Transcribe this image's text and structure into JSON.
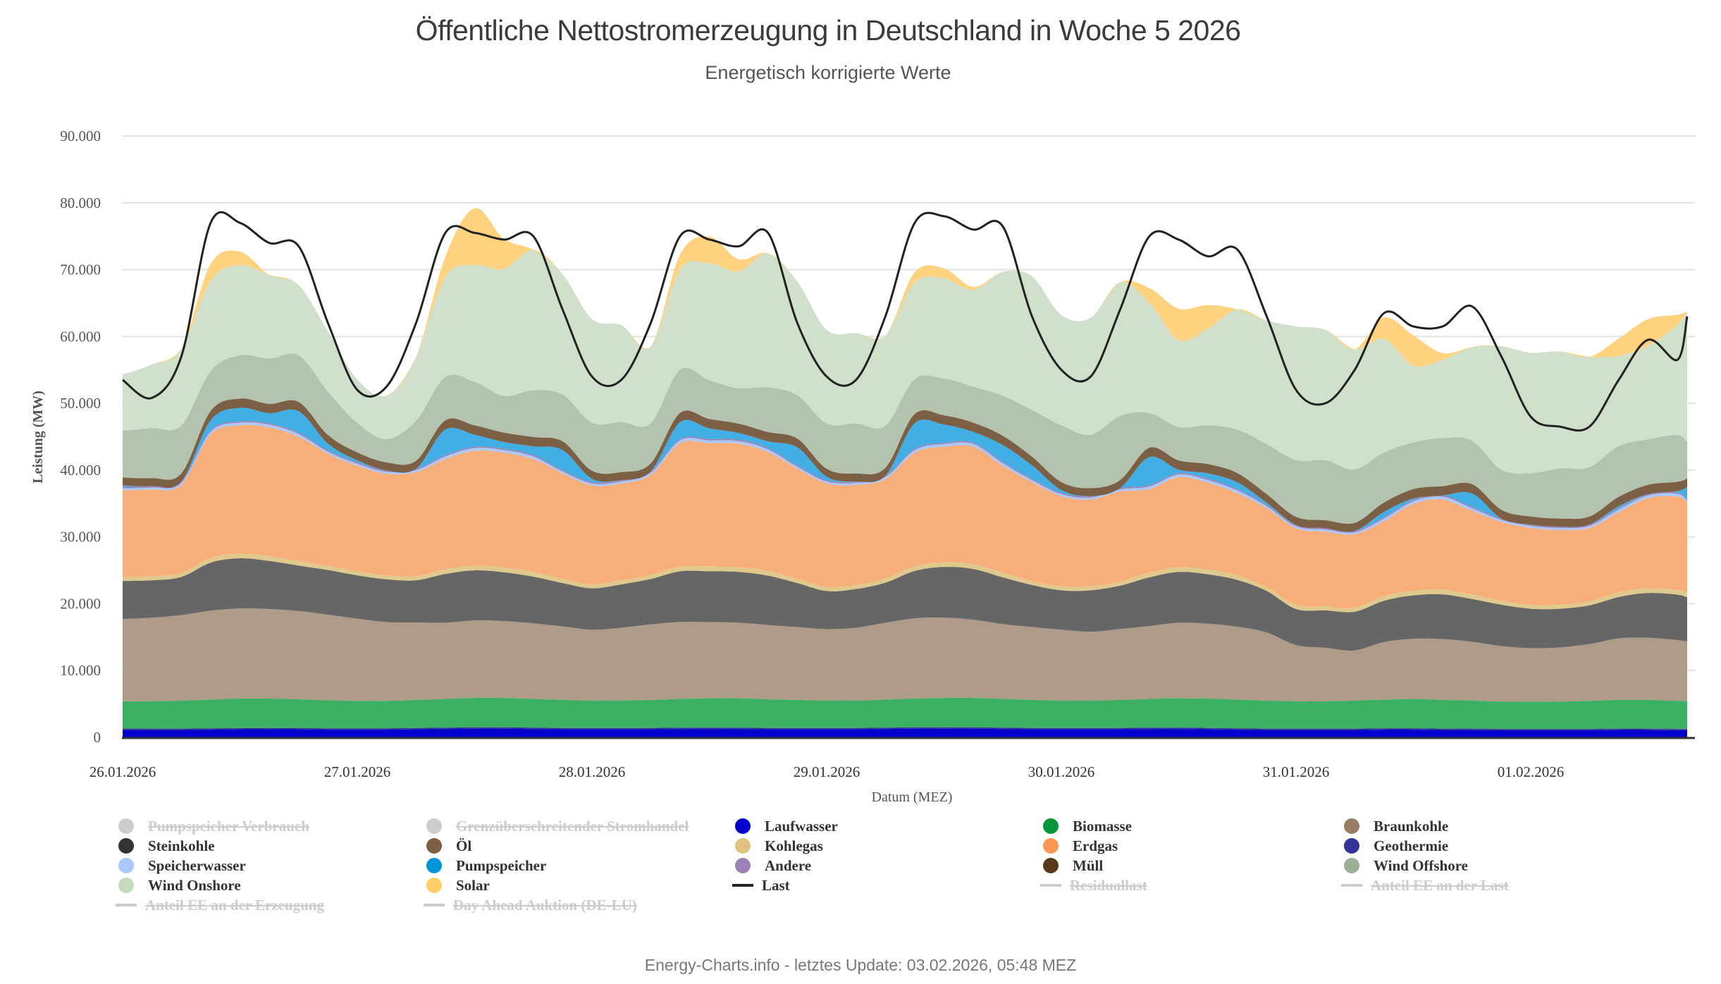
{
  "header": {
    "title": "Öffentliche Nettostromerzeugung in Deutschland in Woche 5 2026",
    "subtitle": "Energetisch korrigierte Werte"
  },
  "footer": {
    "text": "Energy-Charts.info - letztes Update: 03.02.2026, 05:48 MEZ"
  },
  "chart_data": {
    "type": "area",
    "stacked": true,
    "title": "Öffentliche Nettostromerzeugung in Deutschland in Woche 5 2026",
    "subtitle": "Energetisch korrigierte Werte",
    "xlabel": "Datum (MEZ)",
    "ylabel": "Leistung (MW)",
    "ylim": [
      0,
      90000
    ],
    "yticks": [
      0,
      10000,
      20000,
      30000,
      40000,
      50000,
      60000,
      70000,
      80000,
      90000
    ],
    "ytick_labels": [
      "0",
      "10.000",
      "20.000",
      "30.000",
      "40.000",
      "50.000",
      "60.000",
      "70.000",
      "80.000",
      "90.000"
    ],
    "xtick_labels": [
      "26.01.2026",
      "27.01.2026",
      "28.01.2026",
      "29.01.2026",
      "30.01.2026",
      "31.01.2026",
      "01.02.2026"
    ],
    "x_step_hours": 3,
    "x_start": "26.01.2026 00:00",
    "grid": true,
    "legend_position": "bottom",
    "x_hours": [
      0,
      3,
      6,
      9,
      12,
      15,
      18,
      21,
      24,
      27,
      30,
      33,
      36,
      39,
      42,
      45,
      48,
      51,
      54,
      57,
      60,
      63,
      66,
      69,
      72,
      75,
      78,
      81,
      84,
      87,
      90,
      93,
      96,
      99,
      102,
      105,
      108,
      111,
      114,
      117,
      120,
      123,
      126,
      129,
      132,
      135,
      138,
      141,
      144,
      147,
      150,
      153,
      156,
      159,
      160
    ],
    "series": [
      {
        "name": "Laufwasser",
        "color": "#0000cc",
        "values": [
          1100,
          1100,
          1100,
          1150,
          1200,
          1200,
          1200,
          1150,
          1150,
          1150,
          1200,
          1250,
          1300,
          1300,
          1250,
          1200,
          1200,
          1200,
          1200,
          1250,
          1250,
          1250,
          1200,
          1200,
          1200,
          1200,
          1250,
          1300,
          1300,
          1300,
          1250,
          1200,
          1200,
          1200,
          1200,
          1250,
          1250,
          1200,
          1150,
          1100,
          1100,
          1100,
          1100,
          1150,
          1150,
          1100,
          1100,
          1050,
          1050,
          1050,
          1050,
          1100,
          1100,
          1050,
          1050
        ]
      },
      {
        "name": "Geothermie",
        "color": "#333399",
        "values": [
          200,
          200,
          200,
          200,
          200,
          200,
          200,
          200,
          200,
          200,
          200,
          200,
          200,
          200,
          200,
          200,
          200,
          200,
          200,
          200,
          200,
          200,
          200,
          200,
          200,
          200,
          200,
          200,
          200,
          200,
          200,
          200,
          200,
          200,
          200,
          200,
          200,
          200,
          200,
          200,
          200,
          200,
          200,
          200,
          200,
          200,
          200,
          200,
          200,
          200,
          200,
          200,
          200,
          200,
          200
        ]
      },
      {
        "name": "Biomasse",
        "color": "#3cb062",
        "values": [
          4100,
          4100,
          4200,
          4300,
          4400,
          4400,
          4300,
          4200,
          4100,
          4100,
          4200,
          4300,
          4400,
          4400,
          4300,
          4200,
          4100,
          4100,
          4200,
          4300,
          4400,
          4400,
          4300,
          4200,
          4100,
          4100,
          4200,
          4300,
          4400,
          4400,
          4300,
          4200,
          4100,
          4100,
          4200,
          4300,
          4400,
          4400,
          4300,
          4200,
          4100,
          4100,
          4200,
          4300,
          4400,
          4300,
          4200,
          4100,
          4100,
          4100,
          4200,
          4300,
          4300,
          4200,
          4200
        ]
      },
      {
        "name": "Braunkohle",
        "color": "#ae9b88",
        "values": [
          12300,
          12500,
          12800,
          13300,
          13500,
          13400,
          13200,
          12800,
          12300,
          11800,
          11600,
          11400,
          11600,
          11500,
          11300,
          11000,
          10600,
          10900,
          11300,
          11500,
          11400,
          11300,
          11100,
          10900,
          10700,
          10900,
          11500,
          12000,
          12000,
          11700,
          11200,
          10900,
          10600,
          10300,
          10600,
          10900,
          11300,
          11200,
          10900,
          10200,
          8400,
          8000,
          7500,
          8600,
          9000,
          9100,
          8800,
          8300,
          8000,
          8100,
          8500,
          9200,
          9300,
          9100,
          8900
        ]
      },
      {
        "name": "Steinkohle",
        "color": "#666666",
        "values": [
          5700,
          5600,
          5700,
          7200,
          7500,
          7200,
          6800,
          6700,
          6500,
          6400,
          6300,
          7300,
          7500,
          7300,
          7000,
          6500,
          6200,
          6500,
          6800,
          7600,
          7600,
          7600,
          7400,
          6600,
          5700,
          5800,
          6000,
          7100,
          7600,
          7600,
          7000,
          6300,
          5900,
          6200,
          6500,
          7300,
          7600,
          7400,
          7000,
          6200,
          5400,
          5600,
          5800,
          6200,
          6500,
          6700,
          6400,
          6200,
          5900,
          5800,
          5800,
          6200,
          6700,
          6800,
          6600
        ]
      },
      {
        "name": "Kohlegas",
        "color": "#e0c98d",
        "values": [
          600,
          600,
          600,
          700,
          700,
          700,
          700,
          600,
          600,
          600,
          600,
          700,
          700,
          700,
          700,
          600,
          600,
          600,
          600,
          700,
          700,
          700,
          700,
          600,
          600,
          600,
          600,
          700,
          700,
          700,
          700,
          600,
          600,
          600,
          600,
          700,
          700,
          700,
          700,
          600,
          600,
          600,
          600,
          700,
          700,
          700,
          700,
          600,
          600,
          600,
          600,
          700,
          700,
          700,
          700
        ]
      },
      {
        "name": "Erdgas",
        "color": "#f8ae78",
        "values": [
          13000,
          13000,
          13200,
          18500,
          19200,
          19300,
          18600,
          16800,
          15800,
          15200,
          15600,
          16500,
          17200,
          17200,
          16900,
          15800,
          14800,
          14500,
          15000,
          18500,
          18500,
          18500,
          17800,
          16500,
          15500,
          15000,
          14900,
          17000,
          17300,
          17600,
          16000,
          14800,
          13500,
          13000,
          13500,
          12500,
          13500,
          13000,
          12300,
          11800,
          11500,
          11200,
          11000,
          11200,
          13000,
          13500,
          12500,
          11800,
          11500,
          11200,
          11000,
          12000,
          13500,
          14000,
          13500
        ]
      },
      {
        "name": "Speicherwasser",
        "color": "#a9c8ff",
        "values": [
          300,
          300,
          300,
          400,
          400,
          400,
          400,
          300,
          300,
          300,
          300,
          400,
          400,
          400,
          400,
          300,
          300,
          300,
          300,
          400,
          400,
          400,
          400,
          300,
          300,
          300,
          300,
          400,
          400,
          400,
          400,
          300,
          300,
          300,
          300,
          400,
          400,
          400,
          400,
          300,
          300,
          300,
          300,
          400,
          400,
          400,
          400,
          300,
          300,
          300,
          300,
          400,
          400,
          400,
          300
        ]
      },
      {
        "name": "Andere",
        "color": "#9b82b4",
        "values": [
          200,
          200,
          200,
          200,
          200,
          200,
          200,
          200,
          200,
          200,
          200,
          200,
          200,
          200,
          200,
          200,
          200,
          200,
          200,
          200,
          200,
          200,
          200,
          200,
          200,
          200,
          200,
          200,
          200,
          200,
          200,
          200,
          200,
          200,
          200,
          200,
          200,
          200,
          200,
          200,
          200,
          200,
          200,
          200,
          200,
          200,
          200,
          200,
          200,
          200,
          200,
          200,
          200,
          200,
          200
        ]
      },
      {
        "name": "Pumpspeicher",
        "color": "#41aee6",
        "values": [
          200,
          0,
          0,
          1500,
          2000,
          1500,
          3200,
          1000,
          300,
          0,
          0,
          3800,
          1800,
          1000,
          1300,
          3000,
          500,
          0,
          0,
          2500,
          1600,
          1000,
          1000,
          2700,
          500,
          0,
          0,
          3800,
          2700,
          1600,
          2500,
          2000,
          400,
          0,
          0,
          4200,
          500,
          800,
          1000,
          300,
          0,
          0,
          0,
          800,
          200,
          0,
          2000,
          0,
          0,
          0,
          0,
          300,
          0,
          200,
          1800
        ]
      },
      {
        "name": "Öl",
        "color": "#7b6045",
        "values": [
          1200,
          1200,
          1200,
          1400,
          1400,
          1400,
          1400,
          1300,
          1200,
          1200,
          1200,
          1400,
          1400,
          1400,
          1400,
          1300,
          1200,
          1200,
          1200,
          1400,
          1400,
          1400,
          1400,
          1300,
          1200,
          1200,
          1200,
          1400,
          1400,
          1400,
          1400,
          1300,
          1200,
          1200,
          1200,
          1400,
          1400,
          1400,
          1400,
          1300,
          1200,
          1200,
          1200,
          1400,
          1400,
          1400,
          1400,
          1300,
          1200,
          1200,
          1200,
          1400,
          1400,
          1400,
          1300
        ]
      },
      {
        "name": "Müll",
        "color": "#583a18",
        "values": [
          0,
          0,
          0,
          0,
          0,
          0,
          0,
          0,
          0,
          0,
          0,
          0,
          0,
          0,
          0,
          0,
          0,
          0,
          0,
          0,
          0,
          0,
          0,
          0,
          0,
          0,
          0,
          0,
          0,
          0,
          0,
          0,
          0,
          0,
          0,
          0,
          0,
          0,
          0,
          0,
          0,
          0,
          0,
          0,
          0,
          0,
          0,
          0,
          0,
          0,
          0,
          0,
          0,
          0,
          0
        ]
      },
      {
        "name": "Wind Offshore",
        "color": "#b3c3ae",
        "values": [
          7000,
          7500,
          7200,
          6000,
          6500,
          6800,
          7000,
          6500,
          4400,
          3500,
          6000,
          6500,
          6500,
          5500,
          7000,
          7000,
          7200,
          7500,
          6000,
          6500,
          5800,
          5300,
          6700,
          6500,
          6800,
          7500,
          6300,
          5200,
          5500,
          5400,
          6000,
          7000,
          8500,
          8000,
          9600,
          5200,
          5000,
          5800,
          6500,
          7500,
          8500,
          9000,
          8000,
          7500,
          7000,
          7200,
          6500,
          6000,
          6500,
          7500,
          7400,
          7600,
          6800,
          7000,
          5500
        ]
      },
      {
        "name": "Wind Onshore",
        "color": "#d1e0cb",
        "values": [
          8400,
          9500,
          11500,
          13500,
          13500,
          12500,
          10500,
          9000,
          6500,
          6500,
          9500,
          15000,
          17500,
          19000,
          21000,
          18000,
          15500,
          14500,
          11500,
          15000,
          17500,
          17500,
          20000,
          17000,
          14000,
          13500,
          13500,
          14500,
          15000,
          14500,
          18500,
          20000,
          16500,
          17500,
          20000,
          16500,
          13000,
          14500,
          18000,
          18500,
          20000,
          19500,
          18000,
          17000,
          11500,
          11700,
          14000,
          18500,
          18000,
          17500,
          16500,
          13500,
          14000,
          16500,
          19500
        ]
      },
      {
        "name": "Solar",
        "color": "#ffd27f",
        "values": [
          0,
          0,
          0,
          2500,
          2000,
          0,
          0,
          0,
          0,
          0,
          0,
          3000,
          8500,
          4500,
          0,
          0,
          0,
          0,
          0,
          2200,
          4000,
          1800,
          0,
          0,
          0,
          0,
          0,
          1500,
          1500,
          400,
          0,
          0,
          0,
          0,
          0,
          2200,
          4700,
          3500,
          0,
          0,
          0,
          0,
          0,
          3200,
          4500,
          1000,
          0,
          0,
          0,
          0,
          0,
          2600,
          4000,
          1500,
          0
        ]
      }
    ],
    "line_series": [
      {
        "name": "Last",
        "color": "#222222",
        "values": [
          53500,
          50800,
          57000,
          77000,
          77000,
          74000,
          73500,
          62000,
          52000,
          52500,
          62000,
          75500,
          75500,
          74500,
          75000,
          64000,
          54000,
          53500,
          62000,
          75000,
          74500,
          73500,
          75500,
          62000,
          54000,
          53500,
          63000,
          77000,
          78000,
          76000,
          76500,
          63000,
          55000,
          54000,
          64000,
          75000,
          74500,
          72000,
          73000,
          63000,
          52000,
          50000,
          55000,
          63500,
          61500,
          61500,
          64500,
          57000,
          48000,
          46500,
          46500,
          53500,
          59500,
          56500,
          63000
        ]
      }
    ],
    "legend": [
      {
        "label": "Pumpspeicher Verbrauch",
        "color": "#cccccc",
        "marker": "dot",
        "visible": false
      },
      {
        "label": "Grenzüberschreitender Stromhandel",
        "color": "#cccccc",
        "marker": "dot",
        "visible": false
      },
      {
        "label": "Laufwasser",
        "color": "#0000cc",
        "marker": "dot",
        "visible": true
      },
      {
        "label": "Biomasse",
        "color": "#00963a",
        "marker": "dot",
        "visible": true
      },
      {
        "label": "Braunkohle",
        "color": "#997c62",
        "marker": "dot",
        "visible": true
      },
      {
        "label": "Steinkohle",
        "color": "#333333",
        "marker": "dot",
        "visible": true
      },
      {
        "label": "Öl",
        "color": "#7b6045",
        "marker": "dot",
        "visible": true
      },
      {
        "label": "Kohlegas",
        "color": "#e0c280",
        "marker": "dot",
        "visible": true
      },
      {
        "label": "Erdgas",
        "color": "#f89852",
        "marker": "dot",
        "visible": true
      },
      {
        "label": "Geothermie",
        "color": "#333399",
        "marker": "dot",
        "visible": true
      },
      {
        "label": "Speicherwasser",
        "color": "#a9c8ff",
        "marker": "dot",
        "visible": true
      },
      {
        "label": "Pumpspeicher",
        "color": "#0095db",
        "marker": "dot",
        "visible": true
      },
      {
        "label": "Andere",
        "color": "#9b82b4",
        "marker": "dot",
        "visible": true
      },
      {
        "label": "Müll",
        "color": "#583a18",
        "marker": "dot",
        "visible": true
      },
      {
        "label": "Wind Offshore",
        "color": "#9bb196",
        "marker": "dot",
        "visible": true
      },
      {
        "label": "Wind Onshore",
        "color": "#c3dbba",
        "marker": "dot",
        "visible": true
      },
      {
        "label": "Solar",
        "color": "#ffcc66",
        "marker": "dot",
        "visible": true
      },
      {
        "label": "Last",
        "color": "#222222",
        "marker": "line",
        "visible": true
      },
      {
        "label": "Residuallast",
        "color": "#cccccc",
        "marker": "line",
        "visible": false
      },
      {
        "label": "Anteil EE an der Last",
        "color": "#cccccc",
        "marker": "line",
        "visible": false
      },
      {
        "label": "Anteil EE an der Erzeugung",
        "color": "#cccccc",
        "marker": "line",
        "visible": false
      },
      {
        "label": "Day Ahead Auktion (DE-LU)",
        "color": "#cccccc",
        "marker": "line",
        "visible": false
      }
    ]
  }
}
